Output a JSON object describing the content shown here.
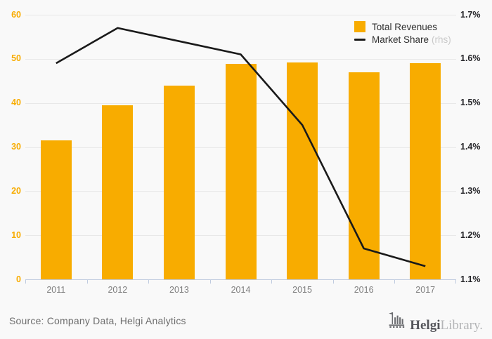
{
  "page": {
    "background": "#f9f9f9",
    "accent_orange": "#f8ac00",
    "line_black": "#1a1a1a",
    "grid_color": "#e8e8e8",
    "axis_color": "#bfcbdf"
  },
  "chart_data": {
    "type": "bar+line",
    "title": "",
    "categories": [
      "2011",
      "2012",
      "2013",
      "2014",
      "2015",
      "2016",
      "2017"
    ],
    "series": [
      {
        "name": "Total Revenues",
        "type": "bar",
        "axis": "left",
        "color": "#f8ac00",
        "values": [
          31.5,
          39.4,
          43.9,
          48.8,
          49.2,
          46.9,
          49.0
        ]
      },
      {
        "name": "Market Share",
        "name_suffix": "(rhs)",
        "type": "line",
        "axis": "right",
        "color": "#1a1a1a",
        "values": [
          1.59,
          1.67,
          1.64,
          1.61,
          1.45,
          1.17,
          1.13
        ]
      }
    ],
    "left_axis": {
      "min": 0,
      "max": 60,
      "tick_labels": [
        "60",
        "50",
        "40",
        "30",
        "20",
        "10",
        "0"
      ],
      "color": "#f8ac00"
    },
    "right_axis": {
      "min": 1.1,
      "max": 1.7,
      "tick_labels": [
        "1.7%",
        "1.6%",
        "1.5%",
        "1.4%",
        "1.3%",
        "1.2%",
        "1.1%"
      ],
      "color": "#26262a"
    },
    "grid": true,
    "legend_position": "top-right"
  },
  "legend": {
    "items": [
      {
        "label": "Total Revenues",
        "suffix": "",
        "swatch": "square"
      },
      {
        "label": "Market Share",
        "suffix": "(rhs)",
        "swatch": "line"
      }
    ]
  },
  "footer": {
    "source": "Source: Company Data, Helgi Analytics",
    "logo": {
      "icon": "building-columns-flag-icon",
      "brand_dark": "Helgi",
      "brand_light": "Library."
    }
  }
}
